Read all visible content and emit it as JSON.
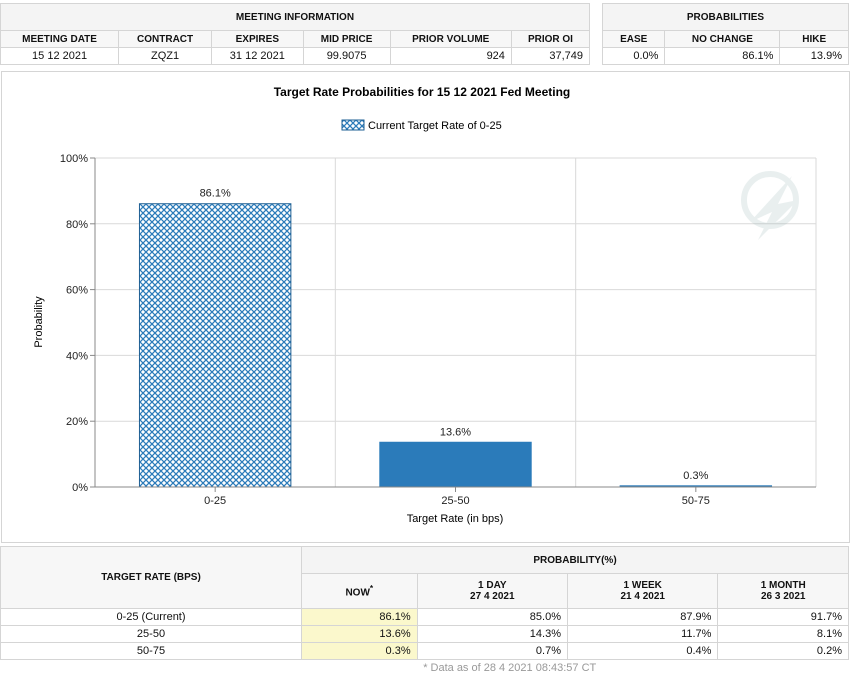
{
  "meeting_info": {
    "title": "MEETING INFORMATION",
    "headers": [
      "MEETING DATE",
      "CONTRACT",
      "EXPIRES",
      "MID PRICE",
      "PRIOR VOLUME",
      "PRIOR OI"
    ],
    "row": [
      "15 12 2021",
      "ZQZ1",
      "31 12 2021",
      "99.9075",
      "924",
      "37,749"
    ]
  },
  "probabilities": {
    "title": "PROBABILITIES",
    "headers": [
      "EASE",
      "NO CHANGE",
      "HIKE"
    ],
    "row": [
      "0.0%",
      "86.1%",
      "13.9%"
    ]
  },
  "chart_data": {
    "type": "bar",
    "title": "Target Rate Probabilities for 15 12 2021 Fed Meeting",
    "legend": "Current Target Rate of 0-25",
    "xlabel": "Target Rate (in bps)",
    "ylabel": "Probability",
    "categories": [
      "0-25",
      "25-50",
      "50-75"
    ],
    "values": [
      86.1,
      13.6,
      0.3
    ],
    "value_labels": [
      "86.1%",
      "13.6%",
      "0.3%"
    ],
    "ylim": [
      0,
      100
    ],
    "yticks": [
      "0%",
      "20%",
      "40%",
      "60%",
      "80%",
      "100%"
    ],
    "grid": true,
    "legend_position": "top-center",
    "colors": {
      "bar": "#2b7bba",
      "current_hatch": "#2b7bba"
    },
    "current_category": "0-25"
  },
  "bottom_table": {
    "target_rate_header": "TARGET RATE (BPS)",
    "probability_header": "PROBABILITY(%)",
    "columns": [
      {
        "label": "NOW",
        "sup": "*",
        "date": ""
      },
      {
        "label": "1 DAY",
        "date": "27 4 2021"
      },
      {
        "label": "1 WEEK",
        "date": "21 4 2021"
      },
      {
        "label": "1 MONTH",
        "date": "26 3 2021"
      }
    ],
    "rows": [
      {
        "rate": "0-25 (Current)",
        "values": [
          "86.1%",
          "85.0%",
          "87.9%",
          "91.7%"
        ]
      },
      {
        "rate": "25-50",
        "values": [
          "13.6%",
          "14.3%",
          "11.7%",
          "8.1%"
        ]
      },
      {
        "rate": "50-75",
        "values": [
          "0.3%",
          "0.7%",
          "0.4%",
          "0.2%"
        ]
      }
    ],
    "footnote": "* Data as of 28 4 2021 08:43:57 CT"
  }
}
